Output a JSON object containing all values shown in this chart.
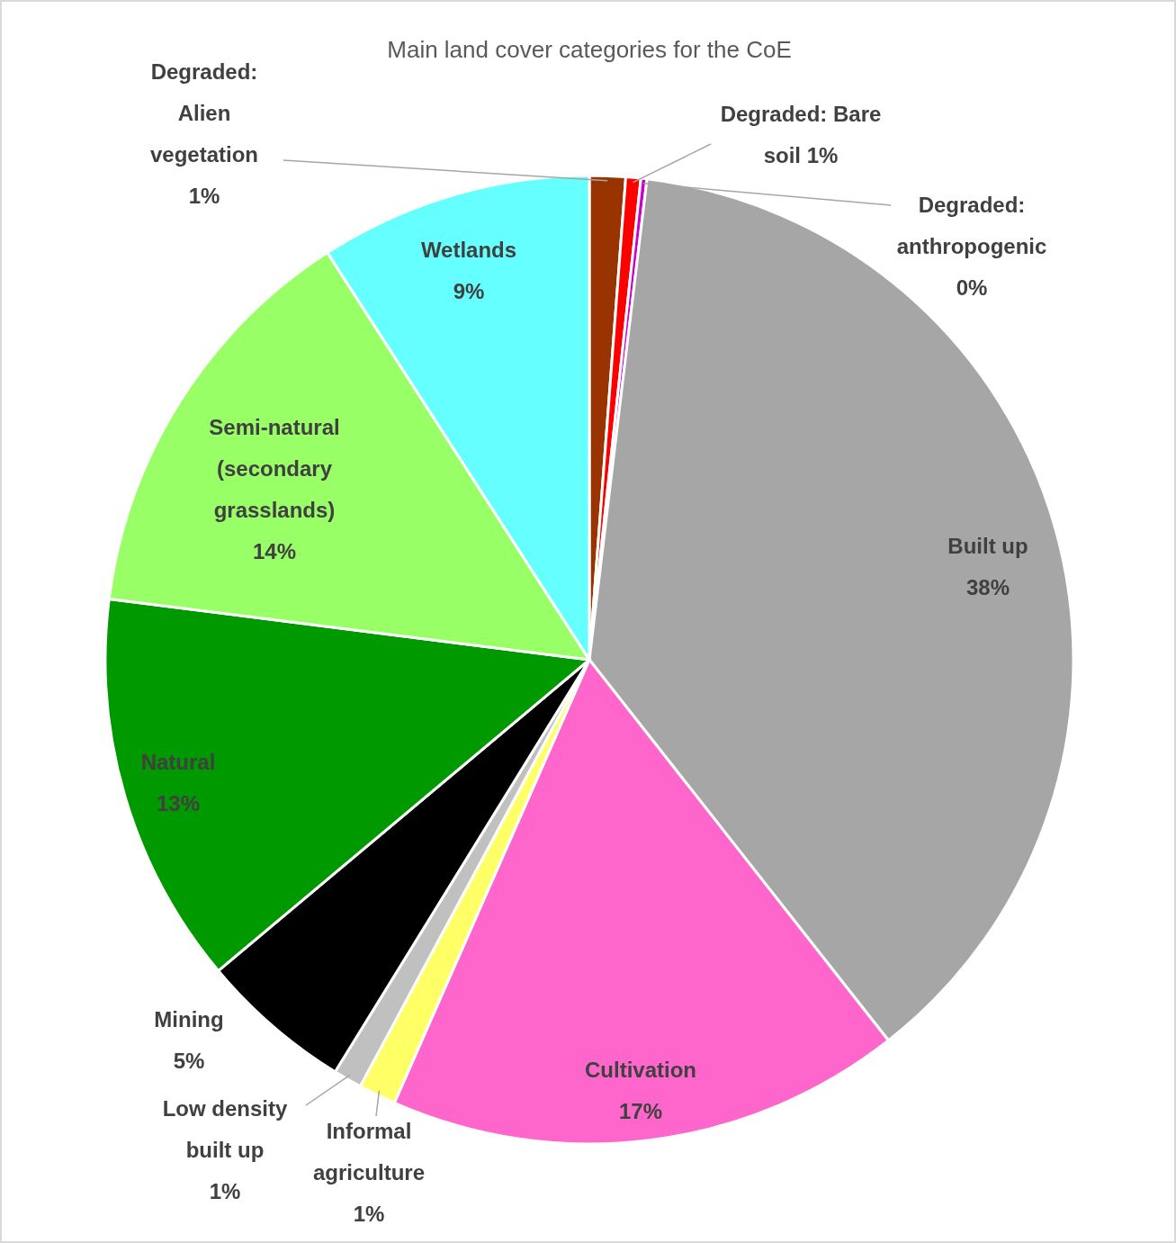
{
  "chart_data": {
    "type": "pie",
    "title": "Main land cover categories for the CoE",
    "categories": [
      "Degraded: Alien vegetation",
      "Degraded: Bare soil",
      "Degraded: anthropogenic",
      "Built up",
      "Cultivation",
      "Informal agriculture",
      "Low density built up",
      "Mining",
      "Natural",
      "Semi-natural (secondary grasslands)",
      "Wetlands"
    ],
    "values": [
      1.2,
      0.5,
      0.2,
      37.5,
      17.2,
      1.25,
      0.95,
      5.1,
      13.1,
      13.9,
      9.1
    ],
    "value_labels": [
      "1%",
      "1%",
      "0%",
      "38%",
      "17%",
      "1%",
      "1%",
      "5%",
      "13%",
      "14%",
      "9%"
    ],
    "colors": [
      "#993300",
      "#ff0000",
      "#cc00cc",
      "#a6a6a6",
      "#ff66cc",
      "#ffff66",
      "#c0c0c0",
      "#000000",
      "#009900",
      "#99ff66",
      "#66ffff"
    ]
  }
}
